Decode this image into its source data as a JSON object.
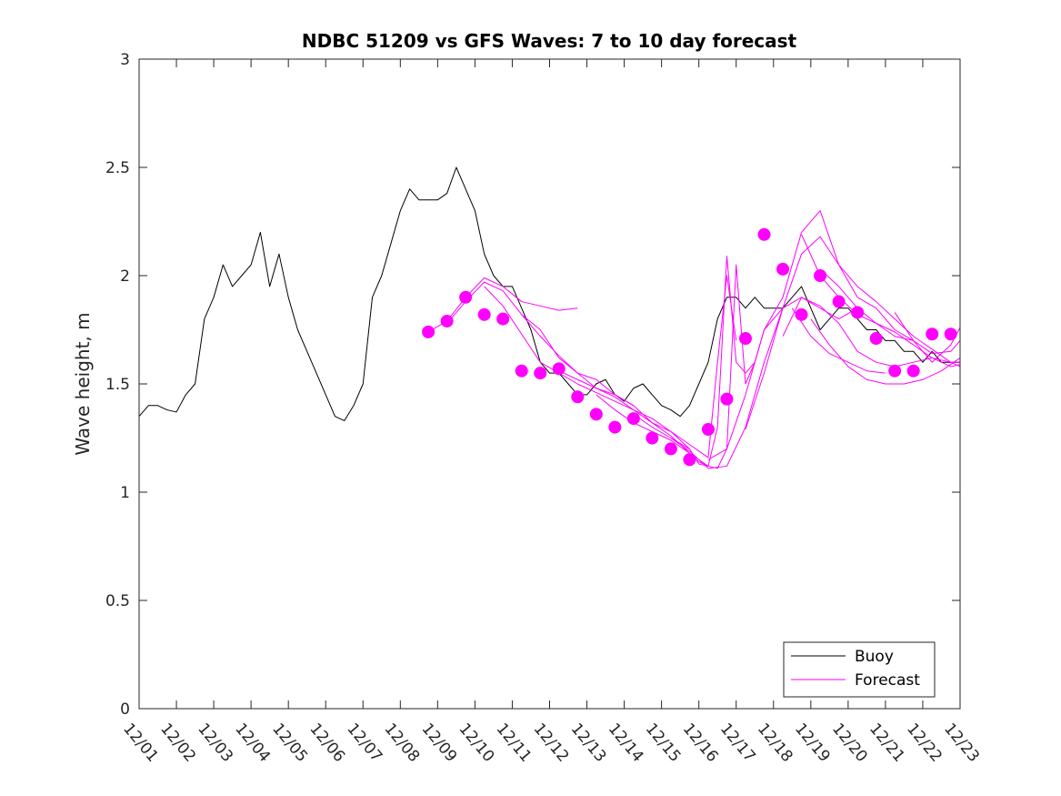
{
  "chart_data": {
    "type": "line",
    "title": "NDBC 51209 vs GFS Waves: 7 to 10 day forecast",
    "xlabel": "",
    "ylabel": "Wave height, m",
    "ylim": [
      0,
      3
    ],
    "xlim": [
      0,
      22
    ],
    "yticks": [
      0,
      0.5,
      1,
      1.5,
      2,
      2.5,
      3
    ],
    "ytick_labels": [
      "0",
      "0.5",
      "1",
      "1.5",
      "2",
      "2.5",
      "3"
    ],
    "xtick_labels": [
      "12/01",
      "12/02",
      "12/03",
      "12/04",
      "12/05",
      "12/06",
      "12/07",
      "12/08",
      "12/09",
      "12/10",
      "12/11",
      "12/12",
      "12/13",
      "12/14",
      "12/15",
      "12/16",
      "12/17",
      "12/18",
      "12/19",
      "12/20",
      "12/21",
      "12/22",
      "12/23"
    ],
    "x_units": "days since 12/01",
    "legend_position": "bottom-right",
    "colors": {
      "buoy": "#000000",
      "forecast": "#ff00ff"
    },
    "series": [
      {
        "name": "Buoy",
        "color": "#000000",
        "x": [
          0,
          0.25,
          0.5,
          0.75,
          1,
          1.25,
          1.5,
          1.75,
          2,
          2.25,
          2.5,
          2.75,
          3,
          3.25,
          3.5,
          3.75,
          4,
          4.25,
          4.5,
          4.75,
          5,
          5.25,
          5.5,
          5.75,
          6,
          6.25,
          6.5,
          6.75,
          7,
          7.25,
          7.5,
          7.75,
          8,
          8.25,
          8.5,
          8.75,
          9,
          9.25,
          9.5,
          9.75,
          10,
          10.25,
          10.5,
          10.75,
          11,
          11.25,
          11.5,
          11.75,
          12,
          12.25,
          12.5,
          12.75,
          13,
          13.25,
          13.5,
          13.75,
          14,
          14.25,
          14.5,
          14.75,
          15,
          15.25,
          15.5,
          15.75,
          16,
          16.25,
          16.5,
          16.75,
          17,
          17.25,
          17.5,
          17.75,
          18,
          18.25,
          18.5,
          18.75,
          19,
          19.25,
          19.5,
          19.75,
          20,
          20.25,
          20.5,
          20.75,
          21,
          21.25,
          21.5,
          21.75,
          22
        ],
        "y": [
          1.35,
          1.4,
          1.4,
          1.38,
          1.37,
          1.45,
          1.5,
          1.8,
          1.9,
          2.05,
          1.95,
          2,
          2.05,
          2.2,
          1.95,
          2.1,
          1.9,
          1.75,
          1.65,
          1.55,
          1.45,
          1.35,
          1.33,
          1.4,
          1.5,
          1.9,
          2,
          2.15,
          2.3,
          2.4,
          2.35,
          2.35,
          2.35,
          2.38,
          2.5,
          2.4,
          2.3,
          2.1,
          2,
          1.95,
          1.95,
          1.85,
          1.75,
          1.6,
          1.55,
          1.55,
          1.5,
          1.45,
          1.45,
          1.5,
          1.52,
          1.45,
          1.42,
          1.48,
          1.5,
          1.45,
          1.4,
          1.38,
          1.35,
          1.4,
          1.5,
          1.6,
          1.8,
          1.9,
          1.9,
          1.85,
          1.9,
          1.85,
          1.85,
          1.85,
          1.9,
          1.95,
          1.85,
          1.75,
          1.8,
          1.85,
          1.85,
          1.8,
          1.75,
          1.75,
          1.7,
          1.7,
          1.65,
          1.65,
          1.6,
          1.65,
          1.6,
          1.6,
          1.6
        ]
      },
      {
        "name": "Forecast",
        "color": "#ff00ff",
        "lines": [
          {
            "x": [
              7.75,
              8.25,
              8.75,
              9.25,
              9.75,
              10.25,
              10.75,
              11.25,
              11.75
            ],
            "y": [
              1.74,
              1.79,
              1.9,
              1.99,
              1.95,
              1.88,
              1.86,
              1.84,
              1.85
            ]
          },
          {
            "x": [
              8.25,
              8.75,
              9.25,
              9.75,
              10.25,
              10.75,
              11.25,
              11.75,
              12.25,
              12.75,
              13.25
            ],
            "y": [
              1.78,
              1.88,
              1.97,
              1.93,
              1.82,
              1.72,
              1.63,
              1.55,
              1.48,
              1.45,
              1.4
            ]
          },
          {
            "x": [
              9.25,
              9.75,
              10.25,
              10.75,
              11.25,
              11.75,
              12.25,
              12.75,
              13.25,
              13.75,
              14.25,
              14.75
            ],
            "y": [
              1.95,
              1.86,
              1.73,
              1.6,
              1.55,
              1.5,
              1.46,
              1.42,
              1.38,
              1.32,
              1.28,
              1.2
            ]
          },
          {
            "x": [
              10.25,
              10.75,
              11.25,
              11.75,
              12.25,
              12.75,
              13.25,
              13.75,
              14.25,
              14.75,
              15.25
            ],
            "y": [
              1.82,
              1.75,
              1.62,
              1.55,
              1.52,
              1.45,
              1.4,
              1.32,
              1.26,
              1.18,
              1.12
            ]
          },
          {
            "x": [
              11.25,
              11.75,
              12.25,
              12.75,
              13.25,
              13.75,
              14.25,
              14.75,
              15.25,
              15.5,
              15.75,
              16.0
            ],
            "y": [
              1.56,
              1.52,
              1.48,
              1.44,
              1.38,
              1.34,
              1.28,
              1.22,
              1.16,
              1.6,
              2.0,
              1.7
            ]
          },
          {
            "x": [
              12.25,
              12.75,
              13.25,
              13.75,
              14.25,
              14.75,
              15.0,
              15.25,
              15.5,
              15.75,
              16.0,
              16.25,
              16.5
            ],
            "y": [
              1.45,
              1.38,
              1.32,
              1.28,
              1.24,
              1.18,
              1.14,
              1.12,
              1.3,
              2.09,
              1.6,
              1.55,
              1.6
            ]
          },
          {
            "x": [
              13.25,
              13.75,
              14.25,
              14.75,
              15.0,
              15.5,
              15.75,
              16.0,
              16.25,
              16.5,
              16.75,
              17.25
            ],
            "y": [
              1.36,
              1.3,
              1.25,
              1.2,
              1.13,
              1.11,
              1.2,
              2.05,
              1.5,
              1.6,
              1.75,
              1.85
            ]
          },
          {
            "x": [
              14.25,
              14.75,
              15.25,
              15.75,
              16.25,
              16.75,
              17.25,
              17.75,
              18.25,
              18.75,
              19.25
            ],
            "y": [
              1.25,
              1.19,
              1.11,
              1.12,
              1.3,
              1.6,
              1.85,
              1.9,
              1.85,
              1.8,
              1.85
            ]
          },
          {
            "x": [
              15.25,
              15.75,
              16.25,
              16.75,
              17.25,
              17.75,
              18.25,
              18.75,
              19.25,
              19.75,
              20.25,
              20.75
            ],
            "y": [
              1.15,
              1.2,
              1.45,
              1.75,
              1.9,
              2.2,
              2.3,
              2.05,
              1.9,
              1.85,
              1.75,
              1.7
            ]
          },
          {
            "x": [
              16.25,
              16.75,
              17.25,
              17.75,
              18.25,
              18.75,
              19.25,
              19.75,
              20.25,
              20.75,
              21.25,
              21.75,
              22
            ],
            "y": [
              1.29,
              1.55,
              1.85,
              2.1,
              2.18,
              2.05,
              1.95,
              1.88,
              1.8,
              1.72,
              1.66,
              1.6,
              1.6
            ]
          },
          {
            "x": [
              17.25,
              17.75,
              18.25,
              18.75,
              19.25,
              19.75,
              20.25,
              20.75,
              21.25,
              21.75,
              22
            ],
            "y": [
              1.72,
              1.9,
              1.86,
              1.78,
              1.65,
              1.6,
              1.58,
              1.6,
              1.62,
              1.6,
              1.58
            ]
          },
          {
            "x": [
              17.75,
              18.25,
              18.75,
              19.25,
              19.75,
              20.25,
              20.75,
              21.25,
              21.75,
              22
            ],
            "y": [
              2.19,
              2.0,
              1.9,
              1.82,
              1.78,
              1.74,
              1.68,
              1.62,
              1.58,
              1.59
            ]
          },
          {
            "x": [
              18.25,
              18.75,
              19.25,
              19.75,
              20.25,
              20.75,
              21.25,
              21.75,
              22
            ],
            "y": [
              2.03,
              1.95,
              1.85,
              1.78,
              1.72,
              1.7,
              1.64,
              1.65,
              1.7
            ]
          },
          {
            "x": [
              18.0,
              18.5,
              19.0,
              19.5,
              20.0,
              20.5,
              21.0,
              21.5,
              22
            ],
            "y": [
              1.8,
              1.68,
              1.58,
              1.52,
              1.5,
              1.5,
              1.52,
              1.56,
              1.62
            ]
          },
          {
            "x": [
              17.5,
              18.0,
              18.5,
              19.0,
              19.5,
              20.0
            ],
            "y": [
              1.85,
              1.72,
              1.64,
              1.6,
              1.56,
              1.55
            ]
          },
          {
            "x": [
              20.25,
              20.75,
              21.25,
              21.75,
              22
            ],
            "y": [
              1.83,
              1.7,
              1.6,
              1.68,
              1.76
            ]
          }
        ],
        "markers": {
          "x": [
            7.75,
            8.25,
            8.75,
            9.25,
            9.75,
            10.25,
            10.75,
            11.25,
            11.75,
            12.25,
            12.75,
            13.25,
            13.75,
            14.25,
            14.75,
            15.25,
            15.75,
            16.25,
            16.75,
            17.25,
            17.75,
            18.25,
            18.75,
            19.25,
            19.75,
            20.25,
            20.75,
            21.25,
            21.75
          ],
          "y": [
            1.74,
            1.79,
            1.9,
            1.82,
            1.8,
            1.56,
            1.55,
            1.57,
            1.44,
            1.36,
            1.3,
            1.34,
            1.25,
            1.2,
            1.15,
            1.29,
            1.43,
            1.71,
            2.19,
            2.03,
            1.82,
            2.0,
            1.88,
            1.83,
            1.71,
            1.56,
            1.56,
            1.73,
            1.73
          ]
        }
      }
    ],
    "legend": [
      "Buoy",
      "Forecast"
    ]
  }
}
